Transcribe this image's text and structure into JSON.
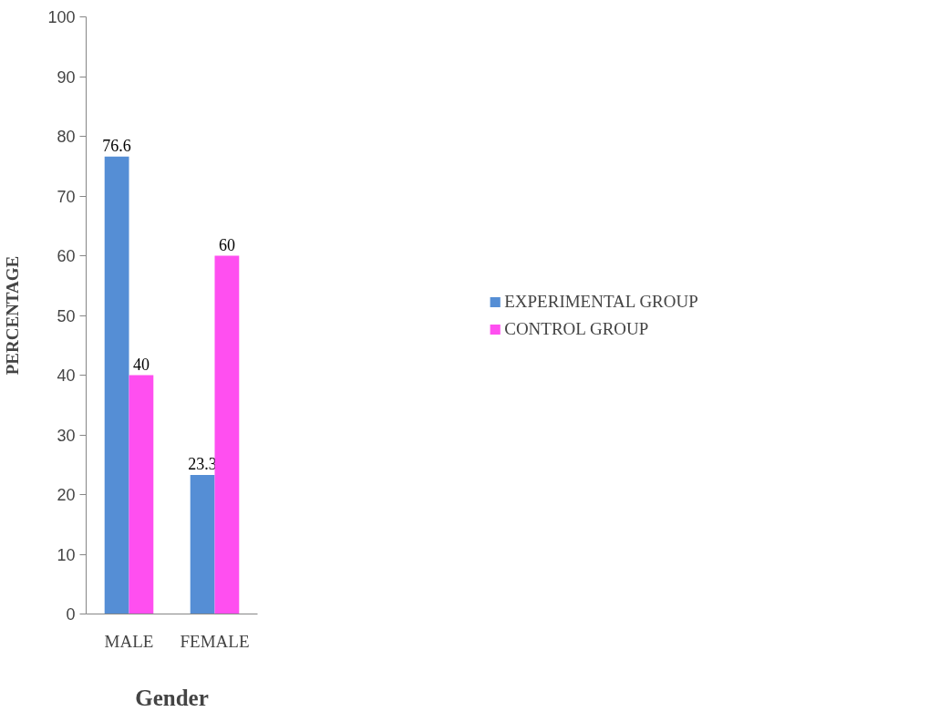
{
  "chart_data": {
    "type": "bar",
    "xlabel": "Gender",
    "ylabel": "PERCENTAGE",
    "categories": [
      "MALE",
      "FEMALE"
    ],
    "series": [
      {
        "name": "EXPERIMENTAL GROUP",
        "color": "#558ed5",
        "values": [
          76.6,
          23.3
        ]
      },
      {
        "name": "CONTROL GROUP",
        "color": "#ff4ff0",
        "values": [
          40,
          60
        ]
      }
    ],
    "ylim": [
      0,
      100
    ],
    "yticks": [
      0,
      10,
      20,
      30,
      40,
      50,
      60,
      70,
      80,
      90,
      100
    ],
    "grid": false,
    "legend": "right",
    "data_labels": true
  }
}
